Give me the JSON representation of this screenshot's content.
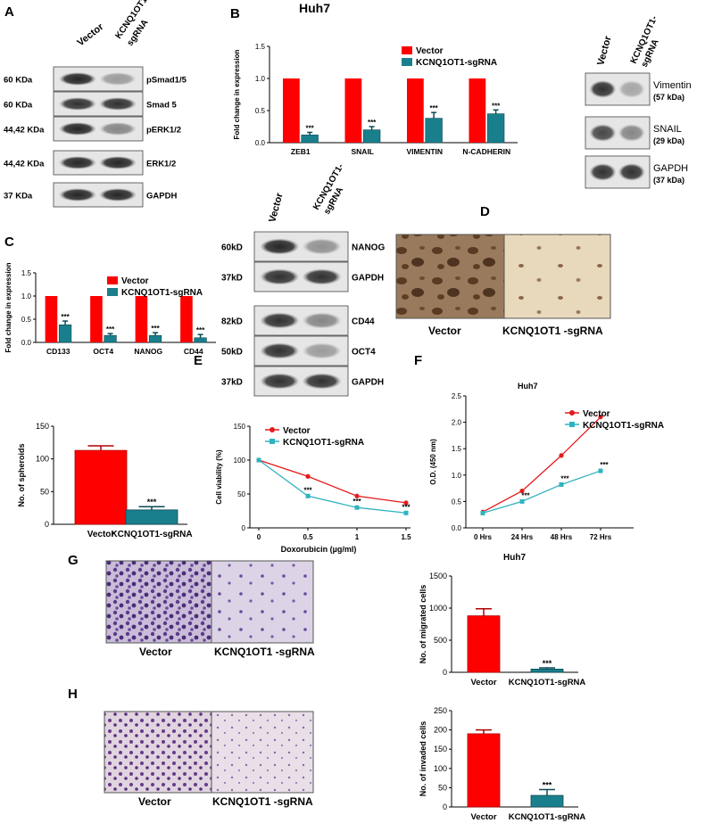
{
  "panels": {
    "A": {
      "letter": "A",
      "lanes": [
        "Vector",
        "KCNQ1OT1-",
        "sgRNA"
      ],
      "rows": [
        {
          "size": "60 KDa",
          "name": "pSmad1/5",
          "left": 0.9,
          "right": 0.35
        },
        {
          "size": "60 KDa",
          "name": "Smad 5",
          "left": 0.85,
          "right": 0.85
        },
        {
          "size": "44,42 KDa",
          "name": "pERK1/2",
          "left": 0.9,
          "right": 0.45
        },
        {
          "size": "44,42 KDa",
          "name": "ERK1/2",
          "left": 0.9,
          "right": 0.9
        },
        {
          "size": "37 KDa",
          "name": "GAPDH",
          "left": 0.9,
          "right": 0.9
        }
      ]
    },
    "B": {
      "letter": "B",
      "title": "Huh7",
      "wb_lanes": [
        "Vector",
        "KCNQ1OT1-",
        "sgRNA"
      ],
      "wb_rows": [
        {
          "name": "Vimentin",
          "size": "(57 kDa)",
          "left": 0.85,
          "right": 0.3
        },
        {
          "name": "SNAIL",
          "size": "(29 kDa)",
          "left": 0.75,
          "right": 0.45
        },
        {
          "name": "GAPDH",
          "size": "(37 kDa)",
          "left": 0.85,
          "right": 0.85
        }
      ]
    },
    "C": {
      "letter": "C",
      "wb_lanes": [
        "Vector",
        "KCNQ1OT1-",
        "sgRNA"
      ],
      "wb_rows": [
        {
          "size": "60kD",
          "name": "NANOG",
          "left": 0.9,
          "right": 0.4
        },
        {
          "size": "37kD",
          "name": "GAPDH",
          "left": 0.85,
          "right": 0.85
        },
        {
          "size": "82kD",
          "name": "CD44",
          "left": 0.85,
          "right": 0.45
        },
        {
          "size": "50kD",
          "name": "OCT4",
          "left": 0.85,
          "right": 0.35
        },
        {
          "size": "37kD",
          "name": "GAPDH",
          "left": 0.85,
          "right": 0.85
        }
      ]
    },
    "D": {
      "letter": "D",
      "captions": [
        "Vector",
        "KCNQ1OT1 -sgRNA"
      ]
    },
    "E": {
      "letter": "E"
    },
    "F": {
      "letter": "F"
    },
    "G": {
      "letter": "G",
      "captions": [
        "Vector",
        "KCNQ1OT1 -sgRNA"
      ]
    },
    "H": {
      "letter": "H",
      "captions": [
        "Vector",
        "KCNQ1OT1 -sgRNA"
      ]
    }
  },
  "colors": {
    "vector": "#ff0000",
    "sgrna": "#1a7f8c",
    "red_line": "#e41a1c",
    "teal_line": "#2fb3c0"
  },
  "chart_data": [
    {
      "id": "B",
      "type": "bar",
      "categories": [
        "ZEB1",
        "SNAIL",
        "VIMENTIN",
        "N-CADHERIN"
      ],
      "series": [
        {
          "name": "Vector",
          "values": [
            1,
            1,
            1,
            1
          ]
        },
        {
          "name": "KCNQ1OT1-sgRNA",
          "values": [
            0.12,
            0.2,
            0.38,
            0.45
          ],
          "errors": [
            0.04,
            0.05,
            0.09,
            0.06
          ]
        }
      ],
      "ylabel": "Fold change in expression",
      "ylim": [
        0,
        1.5
      ],
      "yticks": [
        "0.0",
        "0.5",
        "1.0",
        "1.5"
      ],
      "annotations": [
        "***",
        "***",
        "***",
        "***"
      ]
    },
    {
      "id": "C",
      "type": "bar",
      "categories": [
        "CD133",
        "OCT4",
        "NANOG",
        "CD44"
      ],
      "series": [
        {
          "name": "Vector",
          "values": [
            1,
            1,
            1,
            1
          ]
        },
        {
          "name": "KCNQ1OT1-sgRNA",
          "values": [
            0.38,
            0.15,
            0.15,
            0.1
          ],
          "errors": [
            0.08,
            0.04,
            0.06,
            0.07
          ]
        }
      ],
      "ylabel": "Fold change in expression",
      "ylim": [
        0,
        1.5
      ],
      "yticks": [
        "0.0",
        "0.5",
        "1.0",
        "1.5"
      ],
      "annotations": [
        "***",
        "***",
        "***",
        "***"
      ]
    },
    {
      "id": "spheroids",
      "type": "bar",
      "categories": [
        "Vector",
        "KCNQ1OT1-sgRNA"
      ],
      "values": [
        113,
        22
      ],
      "errors": [
        7,
        5
      ],
      "ylabel": "No. of spheroids",
      "ylim": [
        0,
        150
      ],
      "yticks": [
        "0",
        "50",
        "100",
        "150"
      ],
      "annotations": [
        "",
        "***"
      ]
    },
    {
      "id": "E",
      "type": "line",
      "x": [
        0,
        0.5,
        1,
        1.5
      ],
      "xticks": [
        "0",
        "0.5",
        "1",
        "1.5"
      ],
      "series": [
        {
          "name": "Vector",
          "values": [
            100,
            76,
            47,
            37
          ]
        },
        {
          "name": "KCNQ1OT1-sgRNA",
          "values": [
            100,
            47,
            30,
            22
          ]
        }
      ],
      "xlabel": "Doxorubicin (µg/ml)",
      "ylabel": "Cell viability (%)",
      "ylim": [
        0,
        150
      ],
      "yticks": [
        "0",
        "50",
        "100",
        "150"
      ],
      "annotations": [
        "***",
        "***",
        "***"
      ]
    },
    {
      "id": "F",
      "type": "line",
      "title": "Huh7",
      "categories": [
        "0 Hrs",
        "24 Hrs",
        "48 Hrs",
        "72 Hrs"
      ],
      "series": [
        {
          "name": "Vector",
          "values": [
            0.3,
            0.7,
            1.37,
            2.1
          ]
        },
        {
          "name": "KCNQ1OT1-sgRNA",
          "values": [
            0.28,
            0.5,
            0.82,
            1.08
          ]
        }
      ],
      "ylabel": "O.D. (450 nm)",
      "ylim": [
        0,
        2.5
      ],
      "yticks": [
        "0.0",
        "0.5",
        "1.0",
        "1.5",
        "2.0",
        "2.5"
      ],
      "annotations": [
        "***",
        "***",
        "***"
      ]
    },
    {
      "id": "G",
      "type": "bar",
      "title": "Huh7",
      "categories": [
        "Vector",
        "KCNQ1OT1-sgRNA"
      ],
      "values": [
        880,
        50
      ],
      "errors": [
        110,
        20
      ],
      "ylabel": "No. of migrated cells",
      "ylim": [
        0,
        1500
      ],
      "yticks": [
        "0",
        "500",
        "1000",
        "1500"
      ],
      "annotations": [
        "",
        "***"
      ]
    },
    {
      "id": "H",
      "type": "bar",
      "categories": [
        "Vector",
        "KCNQ1OT1-sgRNA"
      ],
      "values": [
        190,
        30
      ],
      "errors": [
        10,
        15
      ],
      "ylabel": "No. of invaded cells",
      "ylim": [
        0,
        250
      ],
      "yticks": [
        "0",
        "50",
        "100",
        "150",
        "200",
        "250"
      ],
      "annotations": [
        "",
        "***"
      ]
    }
  ]
}
